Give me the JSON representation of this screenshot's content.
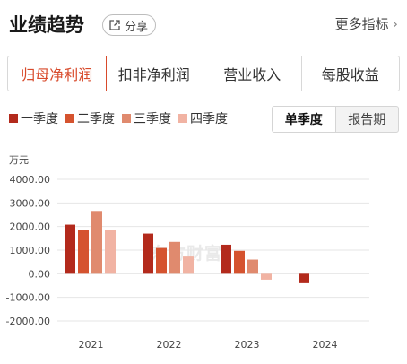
{
  "header": {
    "title": "业绩趋势",
    "share_label": "分享",
    "more_label": "更多指标"
  },
  "tabs": [
    {
      "label": "归母净利润",
      "active": true
    },
    {
      "label": "扣非净利润",
      "active": false
    },
    {
      "label": "营业收入",
      "active": false
    },
    {
      "label": "每股收益",
      "active": false
    }
  ],
  "toggle": {
    "options": [
      "单季度",
      "报告期"
    ],
    "selected": "单季度"
  },
  "colors": {
    "accent": "#d84a2b",
    "q1": "#b32a1c",
    "q2": "#d5532f",
    "q3": "#e08a6e",
    "q4": "#f1b3a3"
  },
  "watermark": "东方财富",
  "chart_data": {
    "type": "bar",
    "unit": "万元",
    "categories": [
      "2021",
      "2022",
      "2023",
      "2024"
    ],
    "series": [
      {
        "name": "一季度",
        "values": [
          2080,
          1700,
          1230,
          -400
        ]
      },
      {
        "name": "二季度",
        "values": [
          1850,
          1090,
          970,
          null
        ]
      },
      {
        "name": "三季度",
        "values": [
          2660,
          1350,
          600,
          null
        ]
      },
      {
        "name": "四季度",
        "values": [
          1850,
          730,
          -250,
          null
        ]
      }
    ],
    "yticks": [
      "4000.00",
      "3000.00",
      "2000.00",
      "1000.00",
      "0.00",
      "-1000.00",
      "-2000.00"
    ],
    "ylim": [
      -2000,
      4000
    ],
    "grid": true,
    "legend": "top-left"
  }
}
